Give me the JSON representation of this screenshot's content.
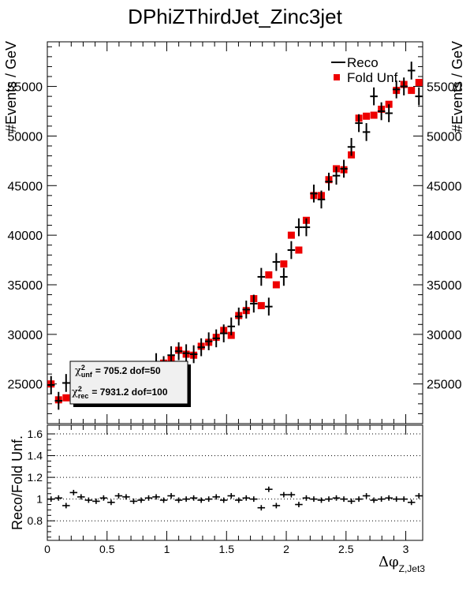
{
  "chart_data": [
    {
      "type": "scatter",
      "title": "DPhiZThirdJet_Zinc3jet",
      "ylabel": "#Events / GeV",
      "xlim": [
        0,
        3.1416
      ],
      "ylim": [
        21000,
        59500
      ],
      "yticks": [
        25000,
        30000,
        35000,
        40000,
        45000,
        50000,
        55000
      ],
      "legend": [
        "Reco",
        "Fold Unf."
      ],
      "legend_position": "top-right",
      "series": [
        {
          "name": "Reco",
          "marker": "errorbar",
          "x": [
            0.0314,
            0.0942,
            0.1571,
            0.2199,
            0.2827,
            0.3456,
            0.4084,
            0.4712,
            0.5341,
            0.5969,
            0.6597,
            0.7226,
            0.7854,
            0.8482,
            0.9111,
            0.9739,
            1.0367,
            1.0996,
            1.1624,
            1.2252,
            1.2881,
            1.3509,
            1.4137,
            1.4765,
            1.5394,
            1.6022,
            1.665,
            1.7279,
            1.7907,
            1.8535,
            1.9164,
            1.9792,
            2.042,
            2.1049,
            2.1677,
            2.2305,
            2.2934,
            2.3562,
            2.419,
            2.4819,
            2.5447,
            2.6075,
            2.6704,
            2.7332,
            2.796,
            2.8588,
            2.9217,
            2.9845,
            3.0473,
            3.1102
          ],
          "values": [
            24900,
            23300,
            25100,
            25200,
            25000,
            24800,
            24900,
            25000,
            25100,
            25200,
            25300,
            25600,
            25800,
            26200,
            27200,
            26900,
            27900,
            28300,
            28100,
            28000,
            28700,
            29300,
            29600,
            30100,
            30800,
            31800,
            32500,
            33100,
            35800,
            32800,
            37300,
            35800,
            38500,
            40800,
            40800,
            44200,
            43600,
            45400,
            46000,
            46700,
            48900,
            51300,
            50400,
            54000,
            52500,
            52300,
            54700,
            55000,
            56600,
            54000
          ],
          "y_error": 900
        },
        {
          "name": "Fold Unf.",
          "marker": "square",
          "color": "#ee0000",
          "x": [
            0.0314,
            0.0942,
            0.1571,
            0.2199,
            0.2827,
            0.3456,
            0.4084,
            0.4712,
            0.5341,
            0.5969,
            0.6597,
            0.7226,
            0.7854,
            0.8482,
            0.9111,
            0.9739,
            1.0367,
            1.0996,
            1.1624,
            1.2252,
            1.2881,
            1.3509,
            1.4137,
            1.4765,
            1.5394,
            1.6022,
            1.665,
            1.7279,
            1.7907,
            1.8535,
            1.9164,
            1.9792,
            2.042,
            2.1049,
            2.1677,
            2.2305,
            2.2934,
            2.3562,
            2.419,
            2.4819,
            2.5447,
            2.6075,
            2.6704,
            2.7332,
            2.796,
            2.8588,
            2.9217,
            2.9845,
            3.0473,
            3.1102
          ],
          "values": [
            25000,
            23400,
            23600,
            24000,
            24500,
            24700,
            24900,
            25100,
            25300,
            25400,
            25600,
            25800,
            26000,
            26300,
            26800,
            27100,
            27600,
            28400,
            28000,
            27900,
            28800,
            29200,
            29700,
            30400,
            29900,
            31900,
            32400,
            33600,
            32900,
            36000,
            35000,
            37100,
            40000,
            38500,
            41500,
            44000,
            44000,
            45600,
            46700,
            46600,
            48100,
            51800,
            52000,
            52100,
            52700,
            53200,
            54600,
            55200,
            54600,
            55400
          ]
        }
      ],
      "chi2_box": {
        "unf_label": "χ",
        "unf_sup": "2",
        "unf_sub": "unf",
        "unf_value": "=      705.2  dof=50",
        "rec_label": "χ",
        "rec_sup": "2",
        "rec_sub": "rec",
        "rec_value": "=    7931.2  dof=100"
      }
    },
    {
      "type": "scatter",
      "ylabel": "Reco/Fold Unf.",
      "xlabel": "Δφ",
      "xlabel_sub": "Z,Jet3",
      "xlim": [
        0,
        3.1416
      ],
      "ylim": [
        0.62,
        1.68
      ],
      "xticks": [
        0,
        0.5,
        1,
        1.5,
        2,
        2.5,
        3
      ],
      "xtick_labels": [
        "0",
        "0.5",
        "1",
        "1.5",
        "2",
        "2.5",
        "3"
      ],
      "yticks": [
        0.8,
        1,
        1.2,
        1.4,
        1.6
      ],
      "ytick_labels": [
        "0.8",
        "1",
        "1.2",
        "1.4",
        "1.6"
      ],
      "grid": "horizontal dotted",
      "series": [
        {
          "name": "",
          "marker": "errorbar",
          "x": [
            0.0314,
            0.0942,
            0.1571,
            0.2199,
            0.2827,
            0.3456,
            0.4084,
            0.4712,
            0.5341,
            0.5969,
            0.6597,
            0.7226,
            0.7854,
            0.8482,
            0.9111,
            0.9739,
            1.0367,
            1.0996,
            1.1624,
            1.2252,
            1.2881,
            1.3509,
            1.4137,
            1.4765,
            1.5394,
            1.6022,
            1.665,
            1.7279,
            1.7907,
            1.8535,
            1.9164,
            1.9792,
            2.042,
            2.1049,
            2.1677,
            2.2305,
            2.2934,
            2.3562,
            2.419,
            2.4819,
            2.5447,
            2.6075,
            2.6704,
            2.7332,
            2.796,
            2.8588,
            2.9217,
            2.9845,
            3.0473,
            3.1102
          ],
          "values": [
            1.0,
            1.01,
            0.94,
            1.06,
            1.02,
            0.99,
            0.98,
            1.01,
            0.97,
            1.03,
            1.02,
            0.98,
            0.99,
            1.01,
            1.02,
            0.99,
            1.03,
            0.99,
            1.0,
            1.01,
            0.99,
            1.0,
            1.02,
            0.99,
            1.03,
            0.99,
            1.01,
            1.0,
            0.92,
            1.09,
            0.94,
            1.04,
            1.04,
            0.95,
            1.01,
            1.0,
            0.99,
            1.0,
            1.01,
            1.0,
            0.98,
            1.0,
            1.03,
            0.99,
            1.0,
            1.01,
            1.0,
            1.0,
            0.97,
            1.03
          ],
          "y_error": 0.025
        }
      ]
    }
  ]
}
